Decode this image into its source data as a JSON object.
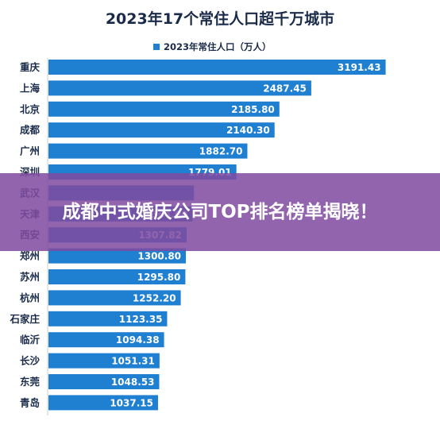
{
  "overlay": {
    "title": "成都中式婚庆公司TOP排名榜单揭晓！",
    "background": "#804aa0"
  },
  "chart_data": {
    "type": "bar",
    "orientation": "horizontal",
    "title": "2023年17个常住人口超千万城市",
    "legend": {
      "position": "top",
      "entries": [
        "2023年常住人口（万人）"
      ]
    },
    "categories": [
      "重庆",
      "上海",
      "北京",
      "成都",
      "广州",
      "深圳",
      "武汉",
      "天津",
      "西安",
      "郑州",
      "苏州",
      "杭州",
      "石家庄",
      "临沂",
      "长沙",
      "东莞",
      "青岛"
    ],
    "series": [
      {
        "name": "2023年常住人口（万人）",
        "values": [
          3191.43,
          2487.45,
          2185.8,
          2140.3,
          1882.7,
          1779.01,
          1377.4,
          1364.0,
          1307.82,
          1300.8,
          1295.8,
          1252.2,
          1123.35,
          1094.38,
          1051.31,
          1048.53,
          1037.15
        ],
        "labels": [
          "3191.43",
          "2487.45",
          "2185.80",
          "2140.30",
          "1882.70",
          "1779.01",
          "",
          "1364.00",
          "1307.82",
          "1300.80",
          "1295.80",
          "1252.20",
          "1123.35",
          "1094.38",
          "1051.31",
          "1048.53",
          "1037.15"
        ],
        "color": "#1f7fd0"
      }
    ],
    "xlim": [
      0,
      3300
    ],
    "grid": false
  }
}
